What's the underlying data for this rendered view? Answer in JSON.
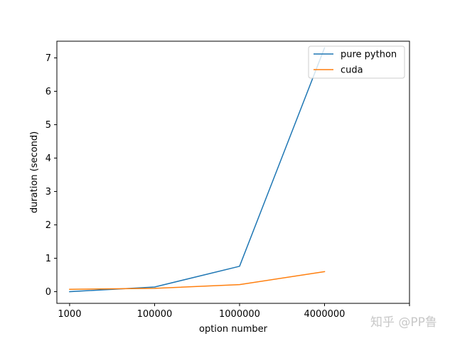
{
  "chart_data": {
    "type": "line",
    "xlabel": "option number",
    "ylabel": "duration (second)",
    "categories": [
      "1000",
      "100000",
      "1000000",
      "4000000"
    ],
    "x_positions": [
      0,
      1,
      2,
      3
    ],
    "xlim": [
      -0.15,
      4
    ],
    "ylim": [
      -0.35,
      7.5
    ],
    "yticks": [
      0,
      1,
      2,
      3,
      4,
      5,
      6,
      7
    ],
    "legend_location": "top-right",
    "grid": false,
    "series": [
      {
        "name": "pure python",
        "color": "#1f77b4",
        "values": [
          0.0,
          0.14,
          0.76,
          7.3
        ]
      },
      {
        "name": "cuda",
        "color": "#ff7f0e",
        "values": [
          0.07,
          0.1,
          0.21,
          0.6
        ]
      }
    ]
  },
  "watermark": "知乎 @PP鲁"
}
